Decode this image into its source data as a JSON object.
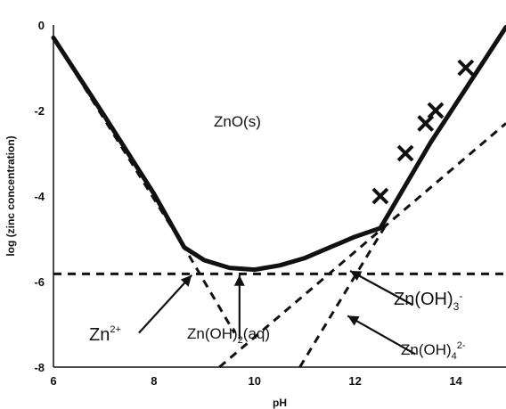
{
  "chart_data": {
    "type": "line",
    "title": "",
    "xlabel": "pH",
    "ylabel": "log (zinc concentration)",
    "xlim": [
      6,
      15
    ],
    "ylim": [
      -8,
      0
    ],
    "x_ticks": [
      6,
      8,
      10,
      12,
      14
    ],
    "y_ticks": [
      0,
      -2,
      -4,
      -6,
      -8
    ],
    "grid": false,
    "series": [
      {
        "style": "solid-thick",
        "x": [
          6.0,
          7.0,
          8.0,
          8.6,
          9.0,
          9.5,
          10.0,
          10.5,
          11.0,
          11.5,
          12.0,
          12.5,
          13.0,
          13.5,
          14.0,
          14.5,
          15.0
        ],
        "y": [
          -0.3,
          -2.1,
          -3.95,
          -5.2,
          -5.5,
          -5.68,
          -5.72,
          -5.62,
          -5.45,
          -5.2,
          -4.95,
          -4.75,
          -3.75,
          -2.75,
          -1.85,
          -0.95,
          -0.05
        ]
      },
      {
        "style": "dashed",
        "x": [
          6.0,
          15.0
        ],
        "y": [
          -5.82,
          -5.82
        ]
      },
      {
        "style": "dashed",
        "x": [
          6.0,
          8.6,
          9.6
        ],
        "y": [
          -0.3,
          -5.2,
          -7.2
        ]
      },
      {
        "style": "dashed",
        "x": [
          9.3,
          15.0
        ],
        "y": [
          -8.0,
          -2.3
        ]
      },
      {
        "style": "dashed",
        "x": [
          10.9,
          12.6
        ],
        "y": [
          -8.0,
          -4.7
        ]
      }
    ],
    "markers": {
      "symbol": "x",
      "x": [
        12.5,
        13.0,
        13.4,
        13.6,
        14.2
      ],
      "y": [
        -4.0,
        -3.0,
        -2.3,
        -2.0,
        -1.0
      ]
    },
    "annotations": [
      {
        "text": "ZnO(s)"
      },
      {
        "text": "Zn",
        "sup": "2+"
      },
      {
        "text": "Zn(OH)",
        "sub": "2",
        "tail": "(aq)"
      },
      {
        "text": "Zn(OH)",
        "sub": "3",
        "sup": "-"
      },
      {
        "text": "Zn(OH)",
        "sub": "4",
        "sup": "2-"
      }
    ]
  }
}
